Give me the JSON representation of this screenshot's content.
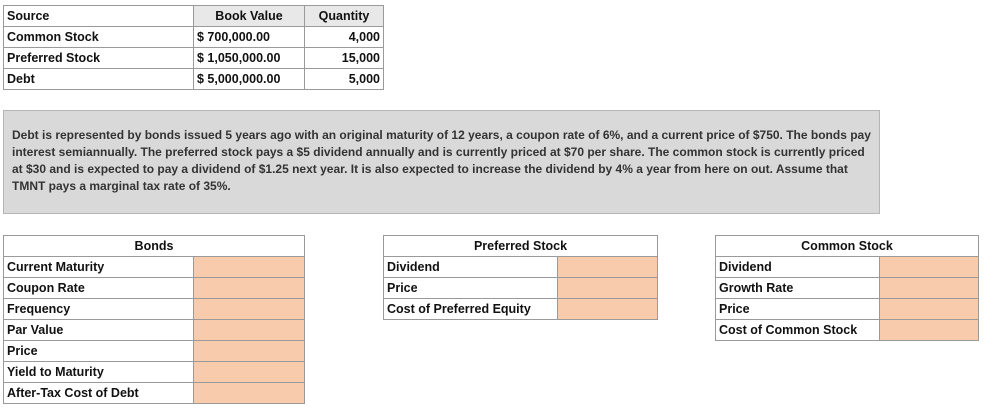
{
  "top_table": {
    "header": [
      "Source",
      "Book Value",
      "Quantity"
    ],
    "rows": [
      [
        "Common Stock",
        "$ 700,000.00",
        "4,000"
      ],
      [
        "Preferred Stock",
        "$ 1,050,000.00",
        "15,000"
      ],
      [
        "Debt",
        "$ 5,000,000.00",
        "5,000"
      ]
    ]
  },
  "description": "Debt is represented  by bonds issued 5 years ago with an original maturity of 12 years, a coupon rate of 6%, and a current price of $750.  The bonds pay interest semiannually.  The preferred stock pays a $5 dividend annually and is currently priced at $70 per share.  The common stock is currently priced at $30 and is expected to pay a dividend of $1.25 next year.  It is also expected to increase the dividend by 4% a year from here on out.  Assume that TMNT pays a marginal tax rate of 35%.",
  "bonds": {
    "title": "Bonds",
    "rows": [
      "Current Maturity",
      "Coupon Rate",
      "Frequency",
      "Par Value",
      "Price",
      "Yield to Maturity",
      "After-Tax Cost of Debt"
    ]
  },
  "preferred": {
    "title": "Preferred Stock",
    "rows": [
      "Dividend",
      "Price",
      "Cost of Preferred Equity"
    ]
  },
  "common": {
    "title": "Common Stock",
    "rows": [
      "Dividend",
      "Growth Rate",
      "Price",
      "Cost of Common Stock"
    ]
  }
}
